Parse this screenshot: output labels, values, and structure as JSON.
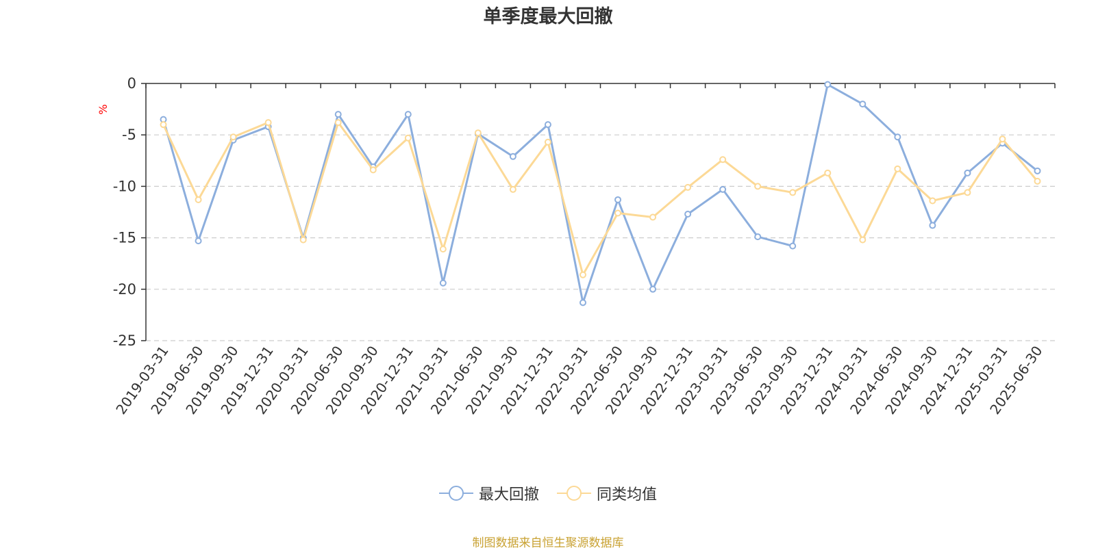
{
  "chart_data": {
    "type": "line",
    "title": "单季度最大回撤",
    "ylabel": "%",
    "xlabel": "",
    "ylim": [
      -25,
      0
    ],
    "yticks": [
      0,
      -5,
      -10,
      -15,
      -20,
      -25
    ],
    "grid": true,
    "legend_position": "bottom",
    "categories": [
      "2019-03-31",
      "2019-06-30",
      "2019-09-30",
      "2019-12-31",
      "2020-03-31",
      "2020-06-30",
      "2020-09-30",
      "2020-12-31",
      "2021-03-31",
      "2021-06-30",
      "2021-09-30",
      "2021-12-31",
      "2022-03-31",
      "2022-06-30",
      "2022-09-30",
      "2022-12-31",
      "2023-03-31",
      "2023-06-30",
      "2023-09-30",
      "2023-12-31",
      "2024-03-31",
      "2024-06-30",
      "2024-09-30",
      "2024-12-31",
      "2025-03-31",
      "2025-06-30"
    ],
    "series": [
      {
        "name": "最大回撤",
        "color": "#8caedd",
        "values": [
          -3.5,
          -15.3,
          -5.5,
          -4.2,
          -15.0,
          -3.0,
          -8.1,
          -3.0,
          -19.4,
          -4.9,
          -7.1,
          -4.0,
          -21.3,
          -11.3,
          -20.0,
          -12.7,
          -10.3,
          -14.9,
          -15.8,
          -0.1,
          -2.0,
          -5.2,
          -13.8,
          -8.7,
          -5.8,
          -8.5
        ]
      },
      {
        "name": "同类均值",
        "color": "#fcd996",
        "values": [
          -4.0,
          -11.3,
          -5.2,
          -3.8,
          -15.2,
          -3.8,
          -8.4,
          -5.3,
          -16.1,
          -4.8,
          -10.3,
          -5.7,
          -18.6,
          -12.6,
          -13.0,
          -10.1,
          -7.4,
          -10.0,
          -10.6,
          -8.7,
          -15.2,
          -8.3,
          -11.4,
          -10.6,
          -5.4,
          -9.5
        ]
      }
    ]
  },
  "footer": {
    "source": "制图数据来自恒生聚源数据库"
  }
}
